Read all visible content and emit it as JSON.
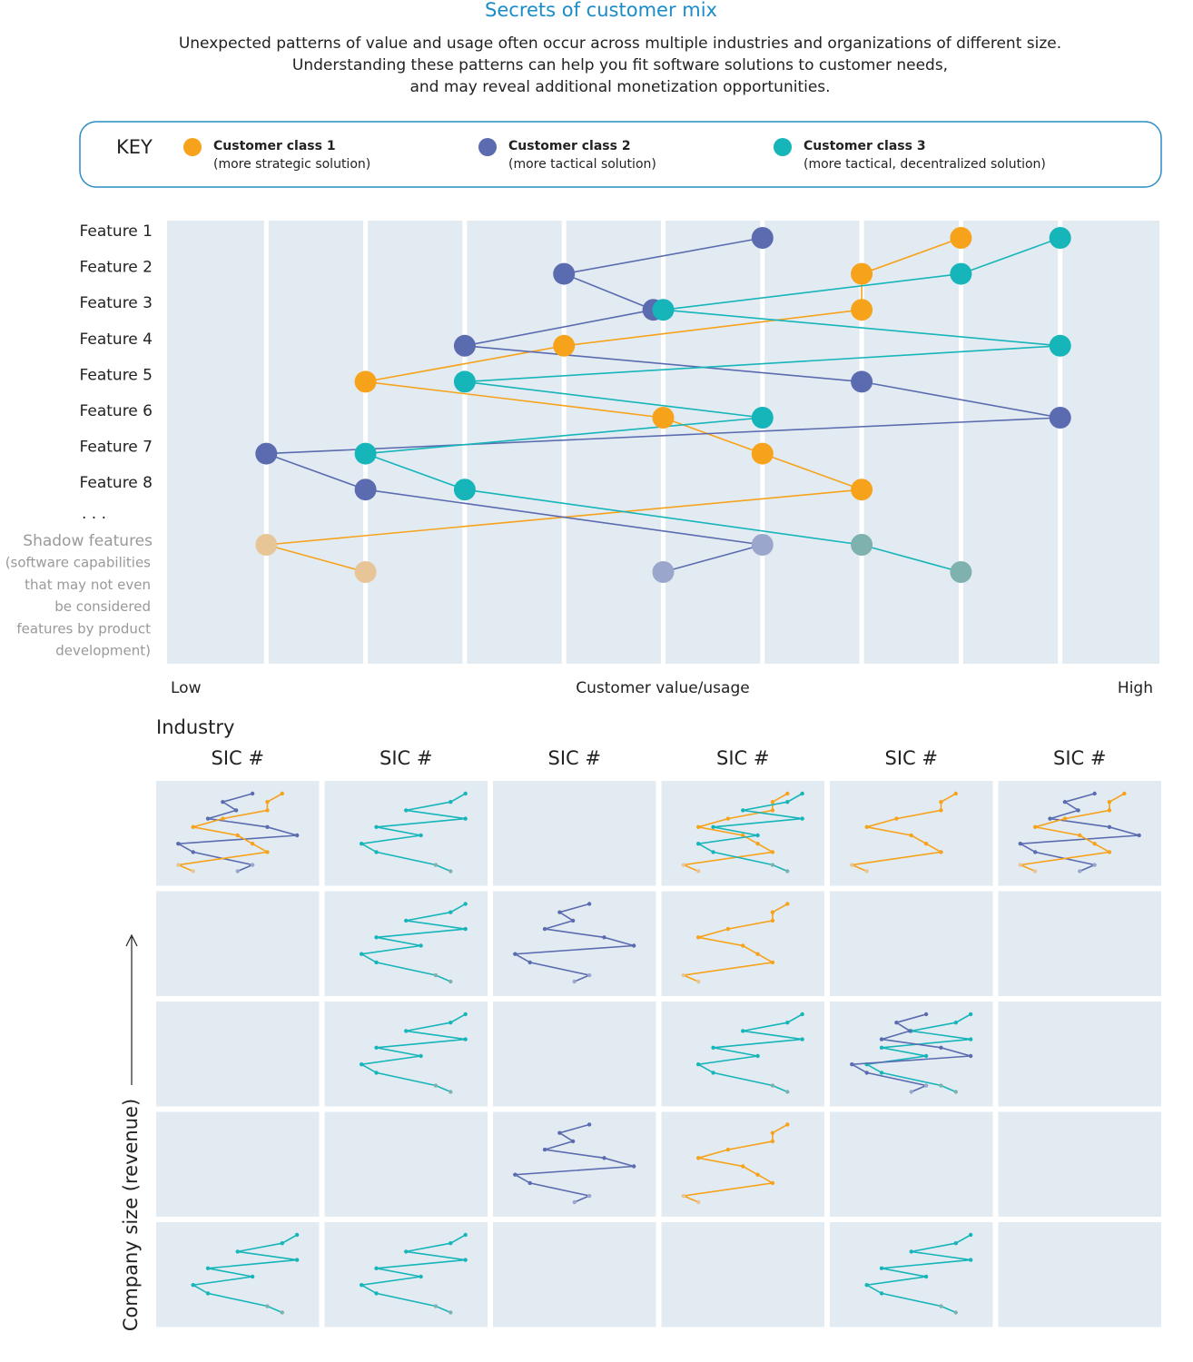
{
  "chart_data": {
    "type": "line",
    "title": "Secrets of customer mix",
    "subtitle": [
      "Unexpected patterns of value and usage often occur across multiple industries and organizations of different size.",
      "Understanding these patterns can help you fit software solutions to customer needs,",
      "and may reveal additional monetization opportunities."
    ],
    "key_title": "KEY",
    "series": [
      {
        "name": "Customer class 1",
        "note": "(more strategic solution)",
        "color": "#f7a21b",
        "shadow_color": "#e8c597",
        "values": [
          8,
          7,
          7,
          4,
          2,
          5,
          6,
          7,
          1,
          2
        ]
      },
      {
        "name": "Customer class 2",
        "note": "(more tactical solution)",
        "color": "#5b6bb0",
        "shadow_color": "#9ba6cc",
        "values": [
          6,
          4,
          4.9,
          3,
          7,
          9,
          1,
          2,
          6,
          5
        ]
      },
      {
        "name": "Customer class 3",
        "note": "(more tactical, decentralized solution)",
        "color": "#16b5b9",
        "shadow_color": "#7fb1ae",
        "values": [
          9,
          8,
          5,
          9,
          3,
          6,
          2,
          3,
          7,
          8
        ]
      }
    ],
    "categories": [
      "Feature 1",
      "Feature 2",
      "Feature 3",
      "Feature 4",
      "Feature 5",
      "Feature 6",
      "Feature 7",
      "Feature 8",
      "Shadow features",
      null
    ],
    "ellipsis": ". . .",
    "shadow_note": [
      "(software capabilities",
      "that may not even",
      "be considered",
      "features by product",
      "development)"
    ],
    "xlim": [
      0,
      10
    ],
    "xticks": [
      1,
      2,
      3,
      4,
      5,
      6,
      7,
      8,
      9
    ],
    "grid": true,
    "x_low": "Low",
    "xlabel": "Customer value/usage",
    "x_high": "High",
    "industry": {
      "title": "Industry",
      "columns": [
        "SIC #",
        "SIC #",
        "SIC #",
        "SIC #",
        "SIC #",
        "SIC #"
      ],
      "ylabel": "Company size (revenue)",
      "cells": [
        [
          [
            2,
            1
          ],
          [
            3
          ],
          [],
          [
            1,
            3
          ],
          [
            1
          ],
          [
            2,
            1
          ]
        ],
        [
          [],
          [
            3
          ],
          [
            2
          ],
          [
            1
          ],
          [],
          []
        ],
        [
          [],
          [
            3
          ],
          [],
          [
            3
          ],
          [
            3,
            2
          ],
          []
        ],
        [
          [],
          [],
          [
            2
          ],
          [
            1
          ],
          [],
          []
        ],
        [
          [
            3
          ],
          [
            3
          ],
          [],
          [],
          [
            3
          ],
          []
        ]
      ]
    }
  }
}
